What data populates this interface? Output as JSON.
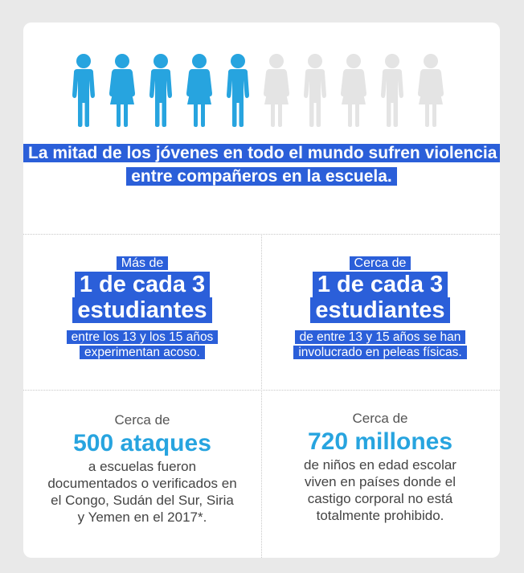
{
  "colors": {
    "highlight": "#2b5fd9",
    "accent": "#27a4df",
    "person_active": "#27a4df",
    "person_inactive": "#e4e4e4",
    "background": "#e9e9e9",
    "card": "#ffffff"
  },
  "icons": {
    "total": 10,
    "highlighted": 5,
    "figures": [
      "boy",
      "girl",
      "boy",
      "girl",
      "boy",
      "girl",
      "boy",
      "girl",
      "boy",
      "girl"
    ]
  },
  "headline": "La mitad de los jóvenes en todo el mundo sufren violencia entre compañeros en la escuela.",
  "stats": {
    "bullying": {
      "prefix": "Más de",
      "value": "1 de cada 3 estudiantes",
      "description": "entre los 13 y los 15 años experimentan acoso."
    },
    "fights": {
      "prefix": "Cerca de",
      "value": "1 de cada 3 estudiantes",
      "description": "de entre 13 y 15 años se han involucrado en peleas físicas."
    },
    "attacks": {
      "prefix": "Cerca de",
      "value": "500 ataques",
      "description": "a escuelas fueron documentados o verificados en el Congo, Sudán del Sur, Siria y Yemen en el 2017*."
    },
    "corporal": {
      "prefix": "Cerca de",
      "value": "720 millones",
      "description": "de niños en edad escolar viven en países donde el castigo corporal no está totalmente prohibido."
    }
  }
}
